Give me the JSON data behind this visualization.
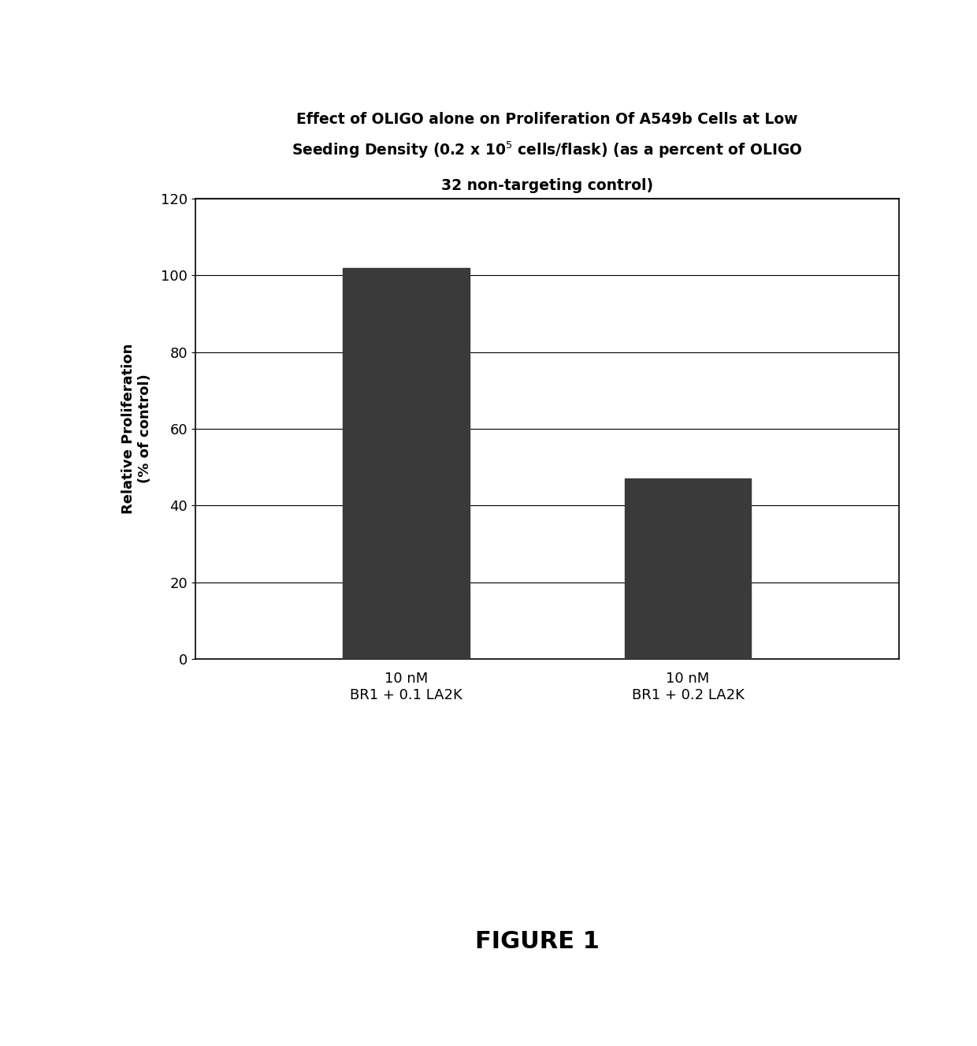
{
  "title_line1": "Effect of OLIGO alone on Proliferation Of A549b Cells at Low",
  "title_line2_pre": "Seeding Density (0.2 x 10",
  "title_line2_sup": "5",
  "title_line2_post": " cells/flask) (as a percent of OLIGO",
  "title_line3": "32 non-targeting control)",
  "categories": [
    "10 nM\nBR1 + 0.1 LA2K",
    "10 nM\nBR1 + 0.2 LA2K"
  ],
  "values": [
    102,
    47
  ],
  "bar_color": "#3a3a3a",
  "ylabel_line1": "Relative Proliferation",
  "ylabel_line2": "(% of control)",
  "ylim": [
    0,
    120
  ],
  "yticks": [
    0,
    20,
    40,
    60,
    80,
    100,
    120
  ],
  "figure_label": "FIGURE 1",
  "background_color": "#ffffff",
  "bar_width": 0.18,
  "title_fontsize": 13.5,
  "axis_fontsize": 13,
  "tick_fontsize": 13,
  "figure_label_fontsize": 22
}
